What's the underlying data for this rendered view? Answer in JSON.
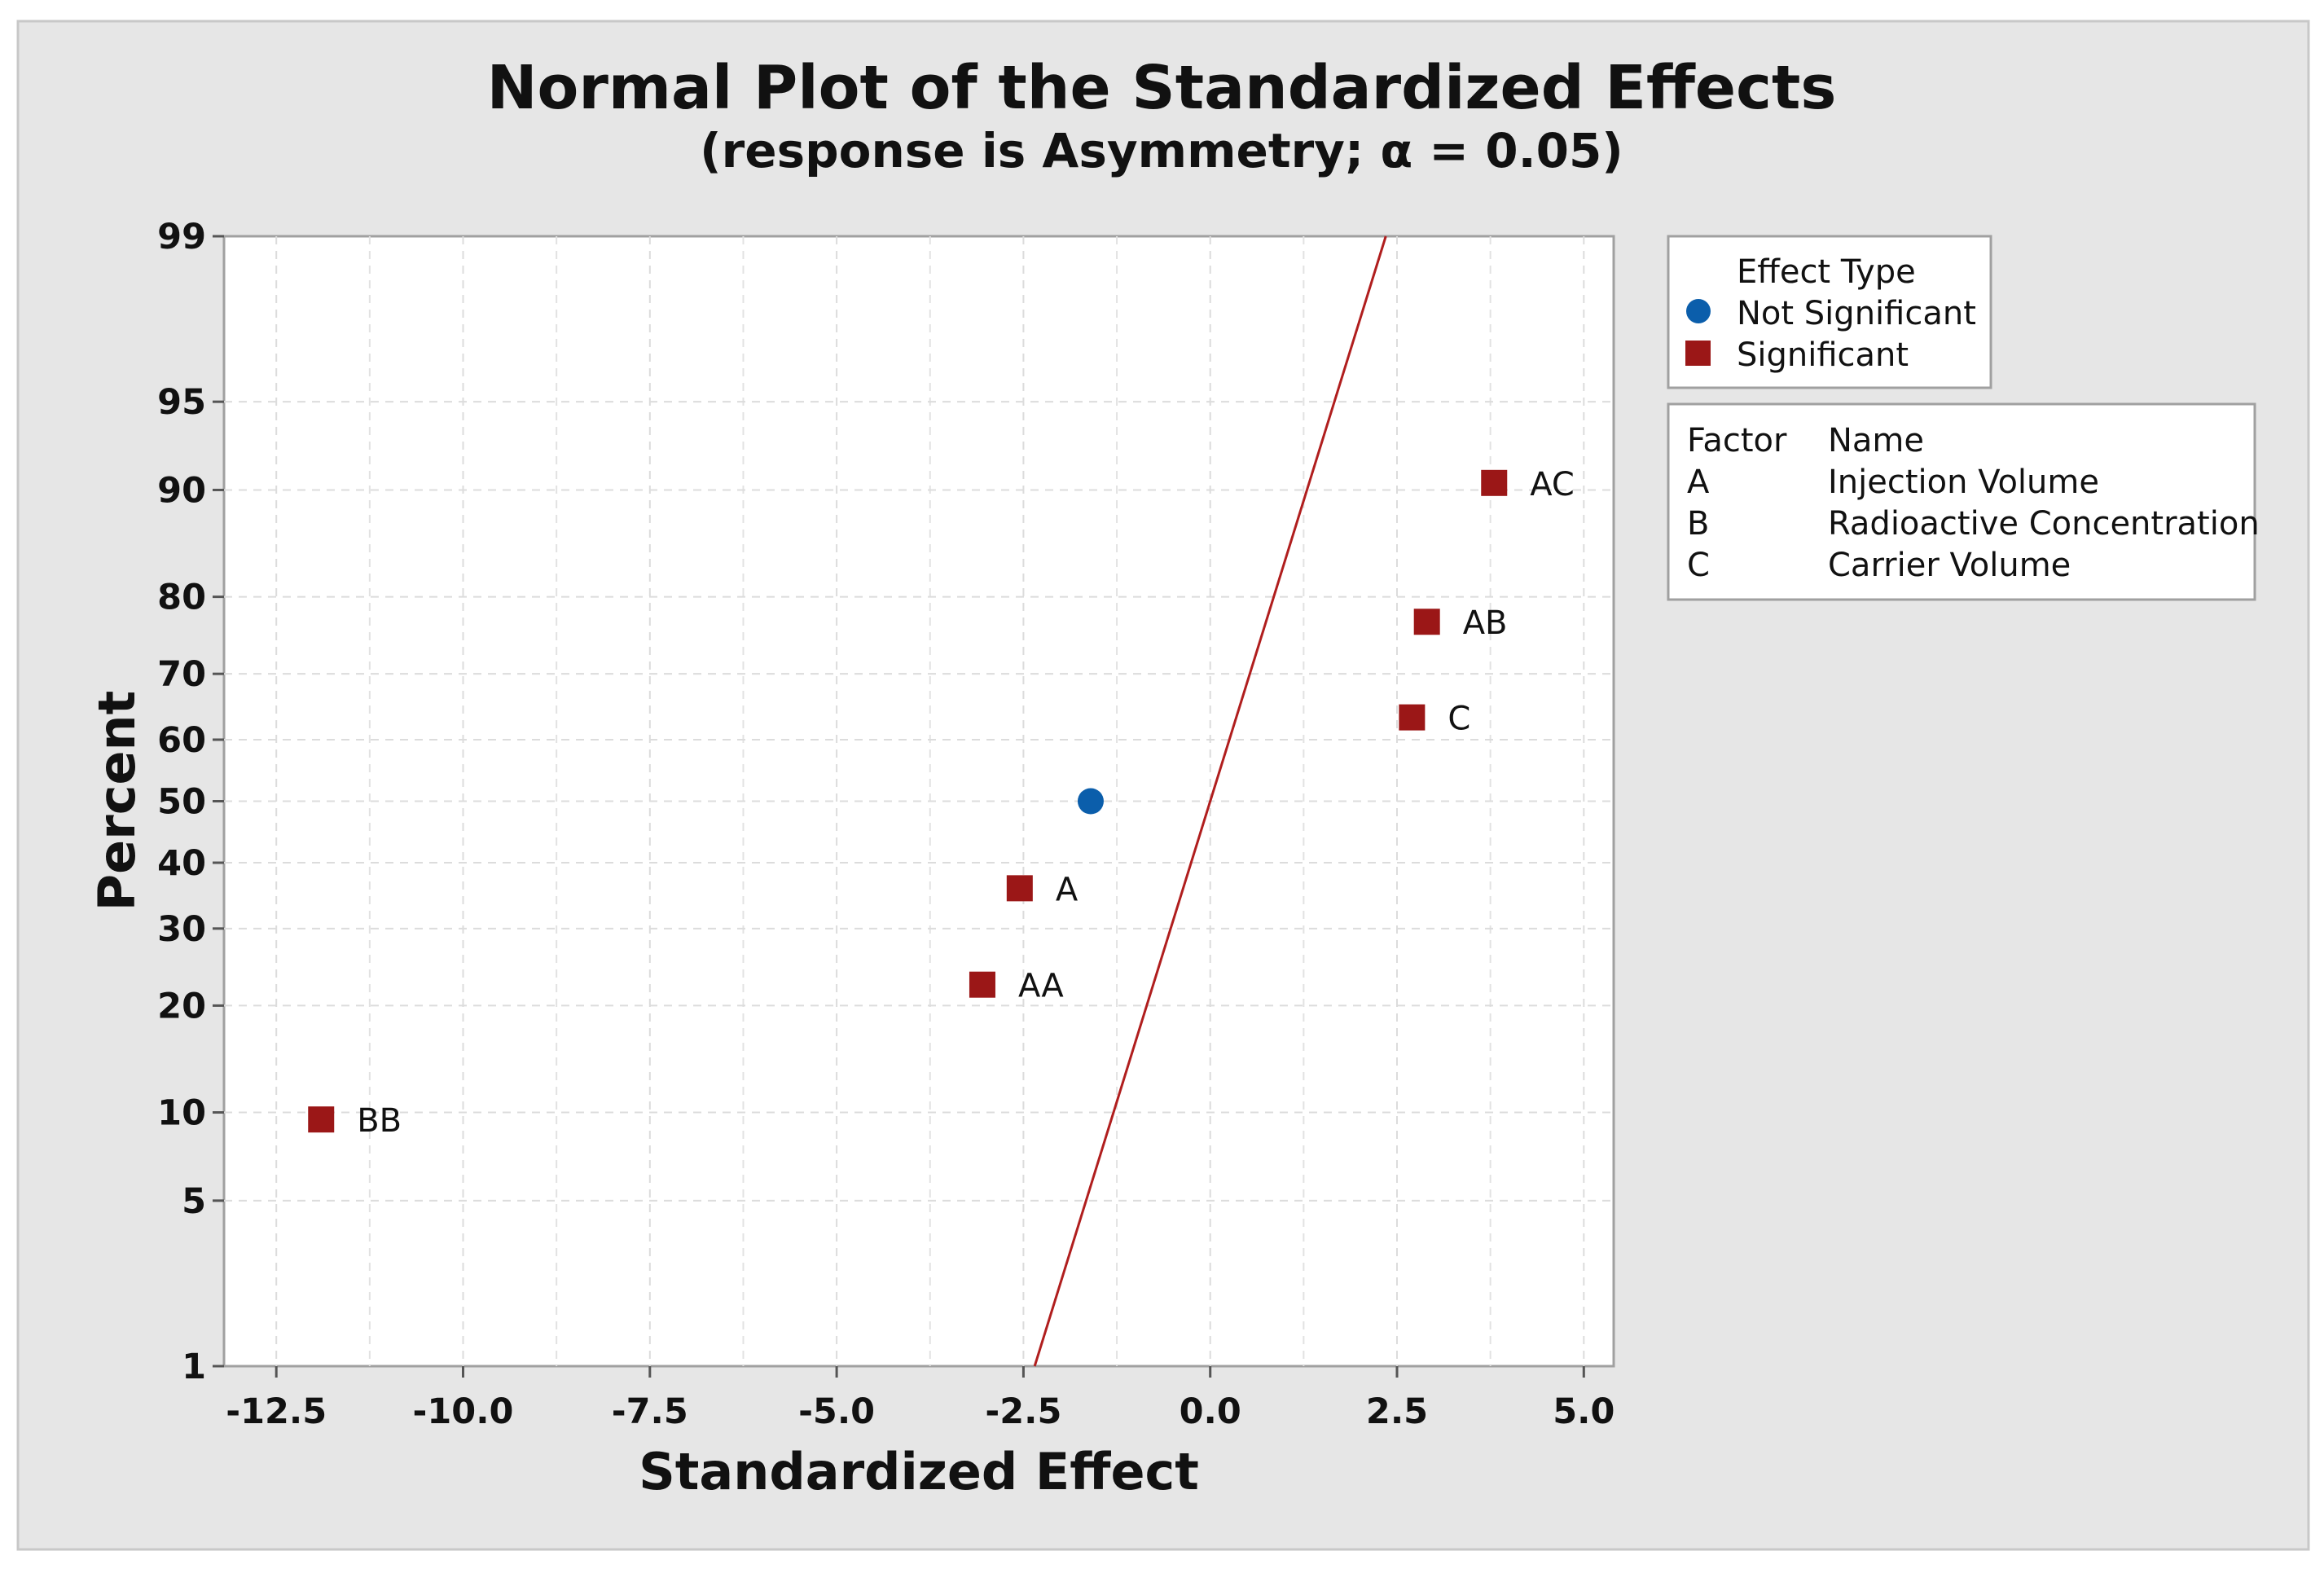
{
  "chart_data": {
    "type": "scatter",
    "title": "Normal Plot of the Standardized Effects",
    "subtitle": "(response is Asymmetry; α = 0.05)",
    "xlabel": "Standardized Effect",
    "ylabel": "Percent",
    "xlim": [
      -13.2,
      5.4
    ],
    "ylim": [
      1,
      99
    ],
    "y_scale": "normal-probability",
    "grid": true,
    "x_ticks": [
      {
        "value": -12.5,
        "label": "-12.5"
      },
      {
        "value": -10.0,
        "label": "-10.0"
      },
      {
        "value": -7.5,
        "label": "-7.5"
      },
      {
        "value": -5.0,
        "label": "-5.0"
      },
      {
        "value": -2.5,
        "label": "-2.5"
      },
      {
        "value": 0.0,
        "label": "0.0"
      },
      {
        "value": 2.5,
        "label": "2.5"
      },
      {
        "value": 5.0,
        "label": "5.0"
      }
    ],
    "y_ticks": [
      {
        "value": 1,
        "label": "1"
      },
      {
        "value": 5,
        "label": "5"
      },
      {
        "value": 10,
        "label": "10"
      },
      {
        "value": 20,
        "label": "20"
      },
      {
        "value": 30,
        "label": "30"
      },
      {
        "value": 40,
        "label": "40"
      },
      {
        "value": 50,
        "label": "50"
      },
      {
        "value": 60,
        "label": "60"
      },
      {
        "value": 70,
        "label": "70"
      },
      {
        "value": 80,
        "label": "80"
      },
      {
        "value": 90,
        "label": "90"
      },
      {
        "value": 95,
        "label": "95"
      },
      {
        "value": 99,
        "label": "99"
      }
    ],
    "reference_line": {
      "x_at_1": -2.35,
      "x_at_99": 2.35,
      "color": "#b01e1e"
    },
    "series": [
      {
        "name": "Not Significant",
        "marker": "circle",
        "color": "#0b5eab",
        "points": [
          {
            "x": -1.6,
            "y": 50,
            "label": ""
          }
        ]
      },
      {
        "name": "Significant",
        "marker": "square",
        "color": "#9b1717",
        "points": [
          {
            "x": -11.9,
            "y": 9.5,
            "label": "BB"
          },
          {
            "x": -3.05,
            "y": 22.5,
            "label": "AA"
          },
          {
            "x": -2.55,
            "y": 36,
            "label": "A"
          },
          {
            "x": 2.7,
            "y": 63.5,
            "label": "C"
          },
          {
            "x": 2.9,
            "y": 77,
            "label": "AB"
          },
          {
            "x": 3.8,
            "y": 90.5,
            "label": "AC"
          }
        ]
      }
    ],
    "legend_effect": {
      "title": "Effect Type",
      "placement": "top-right",
      "entries": [
        {
          "label": "Not Significant",
          "marker": "circle",
          "color": "#0b5eab"
        },
        {
          "label": "Significant",
          "marker": "square",
          "color": "#9b1717"
        }
      ]
    },
    "legend_factors": {
      "header_factor": "Factor",
      "header_name": "Name",
      "rows": [
        {
          "factor": "A",
          "name": "Injection Volume"
        },
        {
          "factor": "B",
          "name": "Radioactive Concentration"
        },
        {
          "factor": "C",
          "name": "Carrier Volume"
        }
      ]
    }
  }
}
